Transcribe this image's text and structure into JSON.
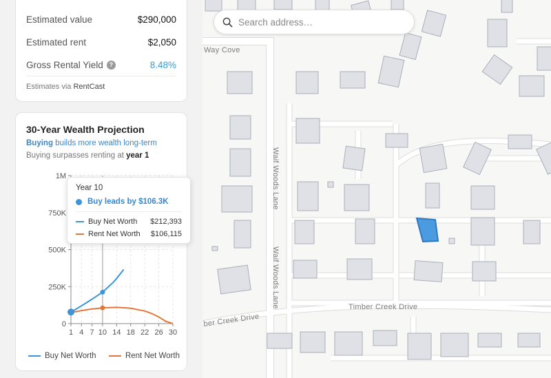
{
  "metrics": {
    "estimated_value_label": "Estimated value",
    "estimated_value": "$290,000",
    "estimated_rent_label": "Estimated rent",
    "estimated_rent": "$2,050",
    "yield_label": "Gross Rental Yield",
    "yield_help": "?",
    "yield_value": "8.48%",
    "source_prefix": "Estimates via ",
    "source_name": "RentCast"
  },
  "projection": {
    "title": "30-Year Wealth Projection",
    "subtitle_bold": "Buying",
    "subtitle_rest": " builds more wealth long-term",
    "surpass_prefix": "Buying surpasses renting at ",
    "surpass_value": "year 1",
    "tooltip": {
      "title": "Year 10",
      "lead": "Buy leads by $106.3K",
      "buy_label": "Buy Net Worth",
      "buy_value": "$212,393",
      "rent_label": "Rent Net Worth",
      "rent_value": "$106,115"
    },
    "legend": {
      "buy": "Buy Net Worth",
      "rent": "Rent Net Worth"
    }
  },
  "chart_data": {
    "type": "line",
    "xlabel": "",
    "ylabel": "",
    "x_ticks": [
      1,
      4,
      7,
      10,
      14,
      18,
      22,
      26,
      30
    ],
    "y_ticks": [
      0,
      250000,
      500000,
      750000,
      1000000
    ],
    "y_tick_labels": [
      "0",
      "250K",
      "500K",
      "750K",
      "1M"
    ],
    "ylim": [
      0,
      1000000
    ],
    "xlim": [
      1,
      30
    ],
    "grid": true,
    "legend_position": "bottom",
    "highlight_year": 10,
    "series": [
      {
        "name": "Buy Net Worth",
        "color": "#3b95d6",
        "x": [
          1,
          4,
          7,
          10,
          13,
          14,
          16
        ],
        "values": [
          78000,
          120000,
          165000,
          212393,
          278000,
          305000,
          365000
        ]
      },
      {
        "name": "Rent Net Worth",
        "color": "#e3773a",
        "x": [
          1,
          4,
          7,
          10,
          14,
          18,
          22,
          24,
          26,
          28,
          30
        ],
        "values": [
          75000,
          88000,
          99000,
          106115,
          110000,
          104000,
          85000,
          68000,
          45000,
          15000,
          0
        ]
      }
    ]
  },
  "map": {
    "search_placeholder": "Search address…",
    "streets": {
      "way_cove": "Way Cove",
      "waif_woods_lane_north": "Waif Woods Lane",
      "waif_woods_lane_south": "Waif Woods Lane",
      "timber_creek_drive_east": "Timber Creek Drive",
      "timber_creek_drive_west": "ber Creek Drive"
    },
    "selected_parcel_color": "#4a9be0"
  }
}
